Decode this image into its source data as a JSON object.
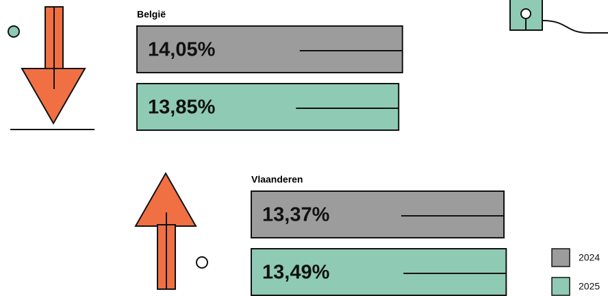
{
  "chart_data": {
    "type": "bar",
    "categories": [
      "België",
      "Vlaanderen"
    ],
    "series": [
      {
        "name": "2024",
        "color": "#9d9c9c",
        "values": [
          14.05,
          13.37
        ],
        "value_labels": [
          "14,05%",
          "13,37%"
        ]
      },
      {
        "name": "2025",
        "color": "#8ecab4",
        "values": [
          13.85,
          13.49
        ],
        "value_labels": [
          "13,85%",
          "13,49%"
        ]
      }
    ]
  }
}
